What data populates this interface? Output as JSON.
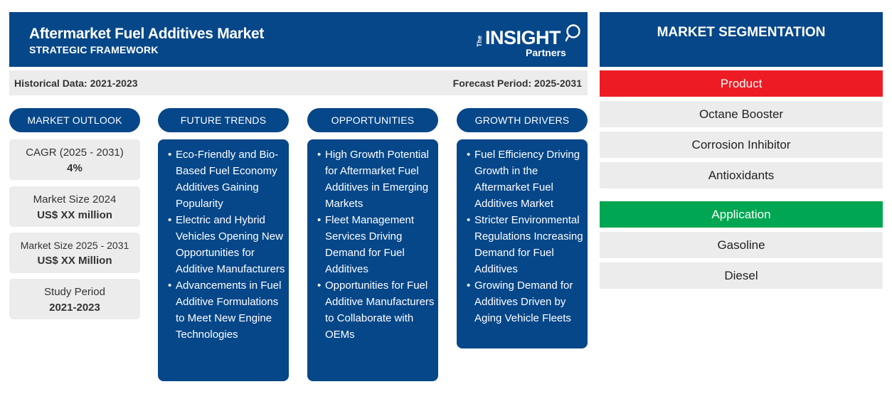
{
  "header": {
    "title": "Aftermarket Fuel Additives Market",
    "subtitle": "STRATEGIC FRAMEWORK",
    "logo": {
      "the": "The",
      "insight": "INSIGHT",
      "partners": "Partners"
    }
  },
  "info_bar": {
    "historical": "Historical Data: 2021-2023",
    "forecast": "Forecast Period: 2025-2031"
  },
  "columns": {
    "market_outlook": "MARKET OUTLOOK",
    "future_trends": "FUTURE TRENDS",
    "opportunities": "OPPORTUNITIES",
    "growth_drivers": "GROWTH DRIVERS"
  },
  "outlook": [
    {
      "label": "CAGR (2025 - 2031)",
      "value": "4%"
    },
    {
      "label": "Market Size 2024",
      "value": "US$ XX million"
    },
    {
      "label": "Market Size 2025 - 2031",
      "value": "US$ XX Million"
    },
    {
      "label": "Study Period",
      "value": "2021-2023"
    }
  ],
  "future_trends": [
    "Eco-Friendly and Bio-Based Fuel Economy Additives Gaining Popularity",
    "Electric and Hybrid Vehicles Opening New Opportunities for Additive Manufacturers",
    "Advancements in Fuel Additive Formulations to Meet New Engine Technologies"
  ],
  "opportunities": [
    "High Growth Potential for Aftermarket Fuel Additives in Emerging Markets",
    "Fleet Management Services Driving Demand for Fuel Additives",
    "Opportunities for Fuel Additive Manufacturers to Collaborate with OEMs"
  ],
  "growth_drivers": [
    "Fuel Efficiency Driving Growth in the Aftermarket Fuel Additives Market",
    "Stricter Environmental Regulations Increasing Demand for Fuel Additives",
    "Growing Demand for Additives Driven by Aging Vehicle Fleets"
  ],
  "segmentation": {
    "title": "MARKET SEGMENTATION",
    "product": {
      "label": "Product",
      "color": "#ed1c24",
      "items": [
        "Octane Booster",
        "Corrosion Inhibitor",
        "Antioxidants"
      ]
    },
    "application": {
      "label": "Application",
      "color": "#00a651",
      "items": [
        "Gasoline",
        "Diesel"
      ]
    }
  },
  "colors": {
    "navy": "#064789",
    "panel_gray": "#ececec"
  }
}
